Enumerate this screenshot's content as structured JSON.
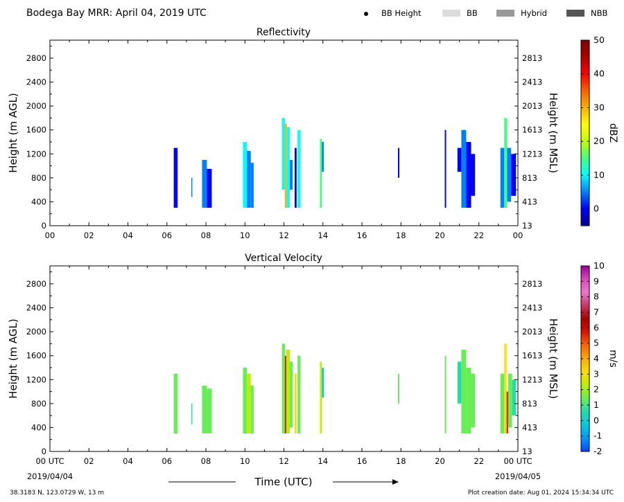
{
  "header": {
    "title": "Bodega Bay MRR:  April 04, 2019 UTC",
    "legend": [
      {
        "label": "BB Height",
        "kind": "dot",
        "color": "#000000"
      },
      {
        "label": "BB",
        "kind": "box",
        "color": "#dcdcdc"
      },
      {
        "label": "Hybrid",
        "kind": "box",
        "color": "#999999"
      },
      {
        "label": "NBB",
        "kind": "box",
        "color": "#555555"
      }
    ]
  },
  "footer": {
    "location": "38.3183 N, 123.0729 W, 13 m",
    "creation": "Plot creation date: Aug 01, 2024 15:34:34 UTC",
    "xlabel": "Time (UTC)",
    "start_date": "2019/04/04",
    "end_date": "2019/04/05",
    "start_tick": "00 UTC",
    "end_tick": "00 UTC"
  },
  "colors": {
    "dbz": [
      "#00008f",
      "#0000ff",
      "#0080ff",
      "#00ffff",
      "#40ff80",
      "#c0ff00",
      "#ffff00",
      "#ffb000",
      "#ff6000",
      "#ff0000",
      "#b00000",
      "#800000"
    ],
    "ms": [
      "#0044ff",
      "#0099ff",
      "#00ccdd",
      "#22ddaa",
      "#66ee55",
      "#bbee00",
      "#ffdd00",
      "#ffaa00",
      "#ff6600",
      "#dd1100",
      "#aa0000",
      "#cc3366",
      "#ee77cc",
      "#dd44bb",
      "#990099"
    ]
  },
  "chart_data": [
    {
      "type": "heatmap",
      "title": "Reflectivity",
      "xlabel": "",
      "ylabel": "Height (m AGL)",
      "y2label": "Height (m MSL)",
      "xlim": [
        0,
        24
      ],
      "ylim": [
        0,
        3100
      ],
      "xticks": [
        "00",
        "02",
        "04",
        "06",
        "08",
        "10",
        "12",
        "14",
        "16",
        "18",
        "20",
        "22",
        "00"
      ],
      "yticks": [
        0,
        400,
        800,
        1200,
        1600,
        2000,
        2400,
        2800
      ],
      "y2ticks": [
        "13",
        "413",
        "813",
        "1213",
        "1613",
        "2013",
        "2413",
        "2813"
      ],
      "colorbar": {
        "label": "dBZ",
        "range": [
          -5,
          50
        ],
        "ticks": [
          0,
          10,
          20,
          30,
          40,
          50
        ]
      },
      "columns": [
        {
          "t0": 6.35,
          "t1": 6.55,
          "bottom": 300,
          "top": 1300,
          "value": 2
        },
        {
          "t0": 7.25,
          "t1": 7.3,
          "bottom": 480,
          "top": 800,
          "value": 3
        },
        {
          "t0": 7.8,
          "t1": 8.05,
          "bottom": 300,
          "top": 1100,
          "value": 3
        },
        {
          "t0": 8.05,
          "t1": 8.3,
          "bottom": 300,
          "top": 950,
          "value": 1
        },
        {
          "t0": 9.9,
          "t1": 10.1,
          "bottom": 300,
          "top": 1400,
          "value": 8
        },
        {
          "t0": 10.1,
          "t1": 10.3,
          "bottom": 300,
          "top": 1250,
          "value": 6
        },
        {
          "t0": 10.3,
          "t1": 10.45,
          "bottom": 300,
          "top": 1050,
          "value": 4
        },
        {
          "t0": 11.9,
          "t1": 12.05,
          "bottom": 600,
          "top": 1800,
          "value": 8
        },
        {
          "t0": 12.05,
          "t1": 12.15,
          "bottom": 300,
          "top": 1700,
          "value": 30
        },
        {
          "t0": 12.15,
          "t1": 12.3,
          "bottom": 300,
          "top": 1650,
          "value": 12
        },
        {
          "t0": 12.3,
          "t1": 12.45,
          "bottom": 600,
          "top": 1100,
          "value": 4
        },
        {
          "t0": 12.55,
          "t1": 12.65,
          "bottom": 300,
          "top": 1300,
          "value": 2
        },
        {
          "t0": 12.7,
          "t1": 12.85,
          "bottom": 300,
          "top": 1600,
          "value": 10
        },
        {
          "t0": 13.85,
          "t1": 13.95,
          "bottom": 300,
          "top": 1450,
          "value": 14
        },
        {
          "t0": 13.95,
          "t1": 14.05,
          "bottom": 900,
          "top": 1400,
          "value": 4
        },
        {
          "t0": 17.85,
          "t1": 17.92,
          "bottom": 800,
          "top": 1300,
          "value": 2
        },
        {
          "t0": 20.25,
          "t1": 20.32,
          "bottom": 300,
          "top": 1600,
          "value": 2
        },
        {
          "t0": 20.9,
          "t1": 21.1,
          "bottom": 900,
          "top": 1300,
          "value": 1
        },
        {
          "t0": 21.1,
          "t1": 21.35,
          "bottom": 300,
          "top": 1600,
          "value": 4
        },
        {
          "t0": 21.35,
          "t1": 21.6,
          "bottom": 300,
          "top": 1400,
          "value": 2
        },
        {
          "t0": 21.6,
          "t1": 21.8,
          "bottom": 500,
          "top": 1200,
          "value": 1
        },
        {
          "t0": 23.1,
          "t1": 23.3,
          "bottom": 300,
          "top": 1300,
          "value": 3
        },
        {
          "t0": 23.3,
          "t1": 23.45,
          "bottom": 300,
          "top": 1800,
          "value": 14
        },
        {
          "t0": 23.45,
          "t1": 23.65,
          "bottom": 400,
          "top": 1300,
          "value": 4
        },
        {
          "t0": 23.65,
          "t1": 23.9,
          "bottom": 500,
          "top": 1200,
          "value": 2
        }
      ]
    },
    {
      "type": "heatmap",
      "title": "Vertical Velocity",
      "xlabel": "Time (UTC)",
      "ylabel": "Height (m AGL)",
      "y2label": "Height (m MSL)",
      "xlim": [
        0,
        24
      ],
      "ylim": [
        0,
        3100
      ],
      "xticks": [
        "00 UTC",
        "02",
        "04",
        "06",
        "08",
        "10",
        "12",
        "14",
        "16",
        "18",
        "20",
        "22",
        "00 UTC"
      ],
      "yticks": [
        0,
        400,
        800,
        1200,
        1600,
        2000,
        2400,
        2800
      ],
      "y2ticks": [
        "13",
        "413",
        "813",
        "1213",
        "1613",
        "2013",
        "2413",
        "2813"
      ],
      "colorbar": {
        "label": "m/s",
        "range": [
          -2,
          10
        ],
        "ticks": [
          -2,
          -1,
          0,
          1,
          2,
          3,
          4,
          5,
          6,
          7,
          8,
          9,
          10
        ]
      },
      "columns": [
        {
          "t0": 6.35,
          "t1": 6.55,
          "bottom": 300,
          "top": 1300,
          "value": 1.5
        },
        {
          "t0": 7.25,
          "t1": 7.3,
          "bottom": 450,
          "top": 800,
          "value": 0.5
        },
        {
          "t0": 7.8,
          "t1": 8.05,
          "bottom": 300,
          "top": 1100,
          "value": 1
        },
        {
          "t0": 8.05,
          "t1": 8.3,
          "bottom": 300,
          "top": 1050,
          "value": 1.5
        },
        {
          "t0": 9.9,
          "t1": 10.1,
          "bottom": 300,
          "top": 1400,
          "value": 1.5
        },
        {
          "t0": 10.1,
          "t1": 10.3,
          "bottom": 300,
          "top": 1300,
          "value": 2
        },
        {
          "t0": 10.3,
          "t1": 10.45,
          "bottom": 300,
          "top": 1100,
          "value": 1.5
        },
        {
          "t0": 11.9,
          "t1": 12.05,
          "bottom": 300,
          "top": 1800,
          "value": 1.5
        },
        {
          "t0": 12.05,
          "t1": 12.12,
          "bottom": 300,
          "top": 1600,
          "value": 5.5
        },
        {
          "t0": 12.12,
          "t1": 12.3,
          "bottom": 300,
          "top": 1700,
          "value": 2.5
        },
        {
          "t0": 12.3,
          "t1": 12.45,
          "bottom": 400,
          "top": 1500,
          "value": 1
        },
        {
          "t0": 12.55,
          "t1": 12.65,
          "bottom": 300,
          "top": 1300,
          "value": 3
        },
        {
          "t0": 12.7,
          "t1": 12.85,
          "bottom": 300,
          "top": 1600,
          "value": 1.5
        },
        {
          "t0": 13.85,
          "t1": 13.95,
          "bottom": 300,
          "top": 1500,
          "value": 2.5
        },
        {
          "t0": 13.95,
          "t1": 14.05,
          "bottom": 900,
          "top": 1400,
          "value": -0.5
        },
        {
          "t0": 17.85,
          "t1": 17.92,
          "bottom": 800,
          "top": 1300,
          "value": 1
        },
        {
          "t0": 20.25,
          "t1": 20.32,
          "bottom": 300,
          "top": 1600,
          "value": 1.5
        },
        {
          "t0": 20.9,
          "t1": 21.1,
          "bottom": 800,
          "top": 1500,
          "value": 0.5
        },
        {
          "t0": 21.1,
          "t1": 21.35,
          "bottom": 300,
          "top": 1700,
          "value": 1.5
        },
        {
          "t0": 21.35,
          "t1": 21.6,
          "bottom": 300,
          "top": 1400,
          "value": 1
        },
        {
          "t0": 21.6,
          "t1": 21.8,
          "bottom": 400,
          "top": 1300,
          "value": 1.5
        },
        {
          "t0": 23.1,
          "t1": 23.3,
          "bottom": 300,
          "top": 1300,
          "value": 1.5
        },
        {
          "t0": 23.3,
          "t1": 23.42,
          "bottom": 300,
          "top": 1800,
          "value": 3
        },
        {
          "t0": 23.42,
          "t1": 23.5,
          "bottom": 300,
          "top": 1000,
          "value": 5.5
        },
        {
          "t0": 23.5,
          "t1": 23.7,
          "bottom": 400,
          "top": 1300,
          "value": 1.5
        },
        {
          "t0": 23.7,
          "t1": 23.9,
          "bottom": 600,
          "top": 1200,
          "value": 0.5
        }
      ]
    }
  ]
}
